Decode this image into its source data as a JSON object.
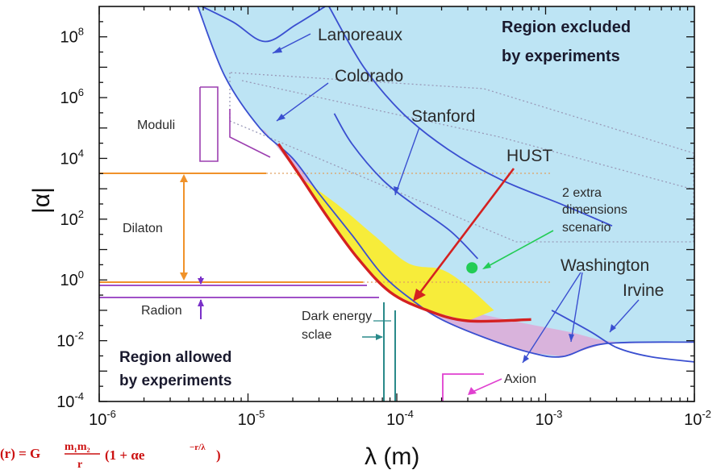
{
  "chart_data": {
    "type": "line",
    "xlabel": "λ (m)",
    "ylabel": "|α|",
    "x_scale": "log",
    "y_scale": "log",
    "xlim": [
      1e-06,
      0.01
    ],
    "ylim": [
      0.0001,
      1000000000.0
    ],
    "x_ticks": [
      {
        "value": 1e-06,
        "base": "10",
        "exp": "-6"
      },
      {
        "value": 1e-05,
        "base": "10",
        "exp": "-5"
      },
      {
        "value": 0.0001,
        "base": "10",
        "exp": "-4"
      },
      {
        "value": 0.001,
        "base": "10",
        "exp": "-3"
      },
      {
        "value": 0.01,
        "base": "10",
        "exp": "-2"
      }
    ],
    "y_ticks": [
      {
        "value": 0.0001,
        "base": "10",
        "exp": "-4"
      },
      {
        "value": 0.01,
        "base": "10",
        "exp": "-2"
      },
      {
        "value": 1,
        "base": "10",
        "exp": "0"
      },
      {
        "value": 100.0,
        "base": "10",
        "exp": "2"
      },
      {
        "value": 10000.0,
        "base": "10",
        "exp": "4"
      },
      {
        "value": 1000000.0,
        "base": "10",
        "exp": "6"
      },
      {
        "value": 100000000.0,
        "base": "10",
        "exp": "8"
      }
    ],
    "regions": [
      {
        "name": "Region excluded by experiments",
        "color": "#bde4f4"
      },
      {
        "name": "Region allowed by experiments",
        "color": "#ffffff"
      },
      {
        "name": "HUST",
        "color": "#f7ec3a"
      },
      {
        "name": "Washington / Irvine",
        "color": "#d9b3dc"
      }
    ],
    "region_labels": {
      "excluded_line1": "Region excluded",
      "excluded_line2": "by experiments",
      "allowed_line1": "Region allowed",
      "allowed_line2": "by experiments"
    },
    "curve_labels": {
      "lamoreaux": "Lamoreaux",
      "colorado": "Colorado",
      "stanford": "Stanford",
      "hust": "HUST",
      "extra_dim_line1": "2 extra",
      "extra_dim_line2": "dimensions",
      "extra_dim_line3": "scenario",
      "washington": "Washington",
      "irvine": "Irvine",
      "moduli": "Moduli",
      "dilaton": "Dilaton",
      "radion": "Radion",
      "dark_line1": "Dark energy",
      "dark_line2": "sclae",
      "axion": "Axion"
    },
    "series": [
      {
        "name": "Lamoreaux",
        "color": "#3a4fd0",
        "points": [
          [
            4.9e-06,
            1000000000.0
          ],
          [
            8e-06,
            300000000.0
          ],
          [
            1.3e-05,
            70000000.0
          ],
          [
            2.1e-05,
            250000000.0
          ],
          [
            3.3e-05,
            1000000000.0
          ]
        ]
      },
      {
        "name": "Colorado",
        "color": "#3a4fd0",
        "points": [
          [
            3.5e-05,
            1000000000.0
          ],
          [
            6e-05,
            10000000.0
          ],
          [
            0.00011,
            300000.0
          ],
          [
            0.00022,
            20000.0
          ],
          [
            0.0005,
            2000.0
          ],
          [
            0.0013,
            300.0
          ],
          [
            0.0028,
            60
          ]
        ]
      },
      {
        "name": "Stanford",
        "color": "#3a4fd0",
        "points": [
          [
            3.8e-05,
            300000.0
          ],
          [
            5e-05,
            30000.0
          ],
          [
            8e-05,
            2000.0
          ],
          [
            0.00013,
            300.0
          ],
          [
            0.00023,
            40
          ],
          [
            0.00035,
            5
          ]
        ]
      },
      {
        "name": "Washington",
        "color": "#3a4fd0",
        "points": [
          [
            4.6e-06,
            1000000000.0
          ],
          [
            7e-06,
            5000000.0
          ],
          [
            1.2e-05,
            100000.0
          ],
          [
            2e-05,
            10000.0
          ],
          [
            3e-05,
            700.0
          ],
          [
            5e-05,
            30
          ],
          [
            8e-05,
            1.5
          ],
          [
            0.00013,
            0.2
          ],
          [
            0.0002,
            0.05
          ],
          [
            0.0004,
            0.012
          ],
          [
            0.0008,
            0.004
          ],
          [
            0.0013,
            0.003
          ],
          [
            0.0025,
            0.008
          ],
          [
            0.01,
            0.009
          ]
        ]
      },
      {
        "name": "Irvine",
        "color": "#3a4fd0",
        "points": [
          [
            0.0011,
            0.1
          ],
          [
            0.002,
            0.02
          ],
          [
            0.003,
            0.006
          ],
          [
            0.005,
            0.003
          ],
          [
            0.01,
            0.002
          ]
        ]
      },
      {
        "name": "HUST",
        "color": "#d42121",
        "points": [
          [
            1.6e-05,
            30000.0
          ],
          [
            2.2e-05,
            3000.0
          ],
          [
            3.5e-05,
            100.0
          ],
          [
            5.5e-05,
            5
          ],
          [
            9e-05,
            0.4
          ],
          [
            0.00016,
            0.1
          ],
          [
            0.0003,
            0.045
          ],
          [
            0.0008,
            0.05
          ]
        ]
      }
    ],
    "point": {
      "name": "2 extra dimensions scenario",
      "x": 0.00032,
      "y": 2.5,
      "color": "#22cc55"
    }
  },
  "formula": {
    "lhs": "(r) = G",
    "num": "m₁m₂",
    "den": "r",
    "paren_text": "(1 + αe",
    "exponent": "−r/λ",
    "close": ")"
  }
}
